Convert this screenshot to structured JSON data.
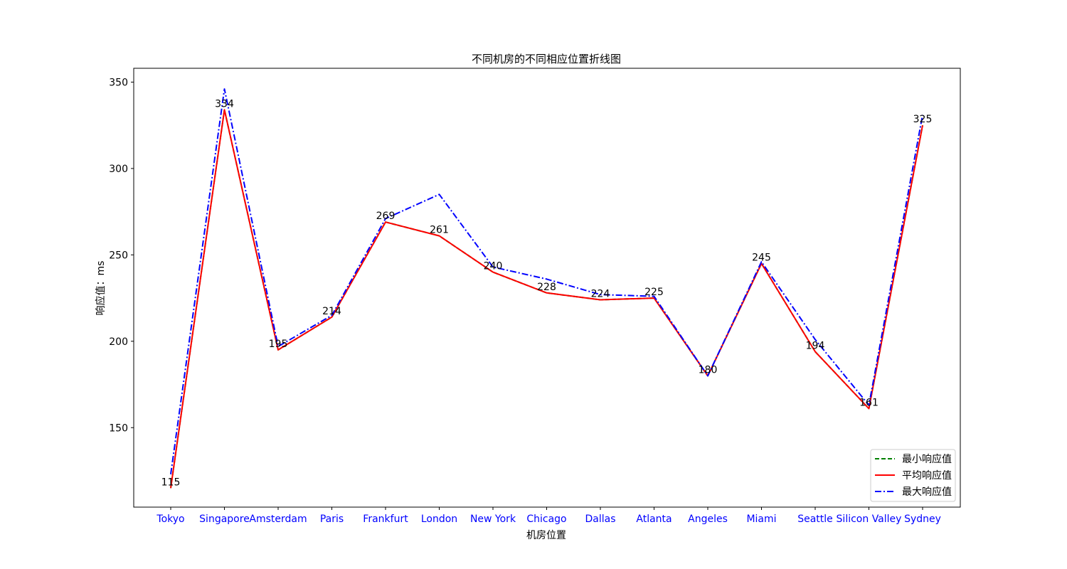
{
  "chart_data": {
    "type": "line",
    "title": "不同机房的不同相应位置折线图",
    "xlabel": "机房位置",
    "ylabel": "响应值：ms",
    "categories": [
      "Tokyo",
      "Singapore",
      "Amsterdam",
      "Paris",
      "Frankfurt",
      "London",
      "New York",
      "Chicago",
      "Dallas",
      "Atlanta",
      "Angeles",
      "Miami",
      "Seattle",
      "Silicon Valley",
      "Sydney"
    ],
    "ylim": [
      104,
      358
    ],
    "yticks": [
      150,
      200,
      250,
      300,
      350
    ],
    "grid": false,
    "legend_position": "lower-right",
    "series": [
      {
        "name": "最小响应值",
        "color": "#008000",
        "style": "dashed",
        "values": [
          115,
          334,
          195,
          214,
          269,
          261,
          240,
          228,
          224,
          225,
          180,
          245,
          194,
          161,
          325
        ]
      },
      {
        "name": "平均响应值",
        "color": "#ff0000",
        "style": "solid",
        "values": [
          115,
          334,
          195,
          214,
          269,
          261,
          240,
          228,
          224,
          225,
          180,
          245,
          194,
          161,
          325
        ]
      },
      {
        "name": "最大响应值",
        "color": "#0000ff",
        "style": "dashdot",
        "values": [
          123,
          346,
          197,
          215,
          271,
          285,
          243,
          236,
          227,
          226,
          180,
          246,
          201,
          163,
          331
        ]
      }
    ],
    "data_labels": [
      "115",
      "334",
      "195",
      "214",
      "269",
      "261",
      "240",
      "228",
      "224",
      "225",
      "180",
      "245",
      "194",
      "161",
      "325"
    ],
    "tick_label_color": "#0000ff"
  }
}
